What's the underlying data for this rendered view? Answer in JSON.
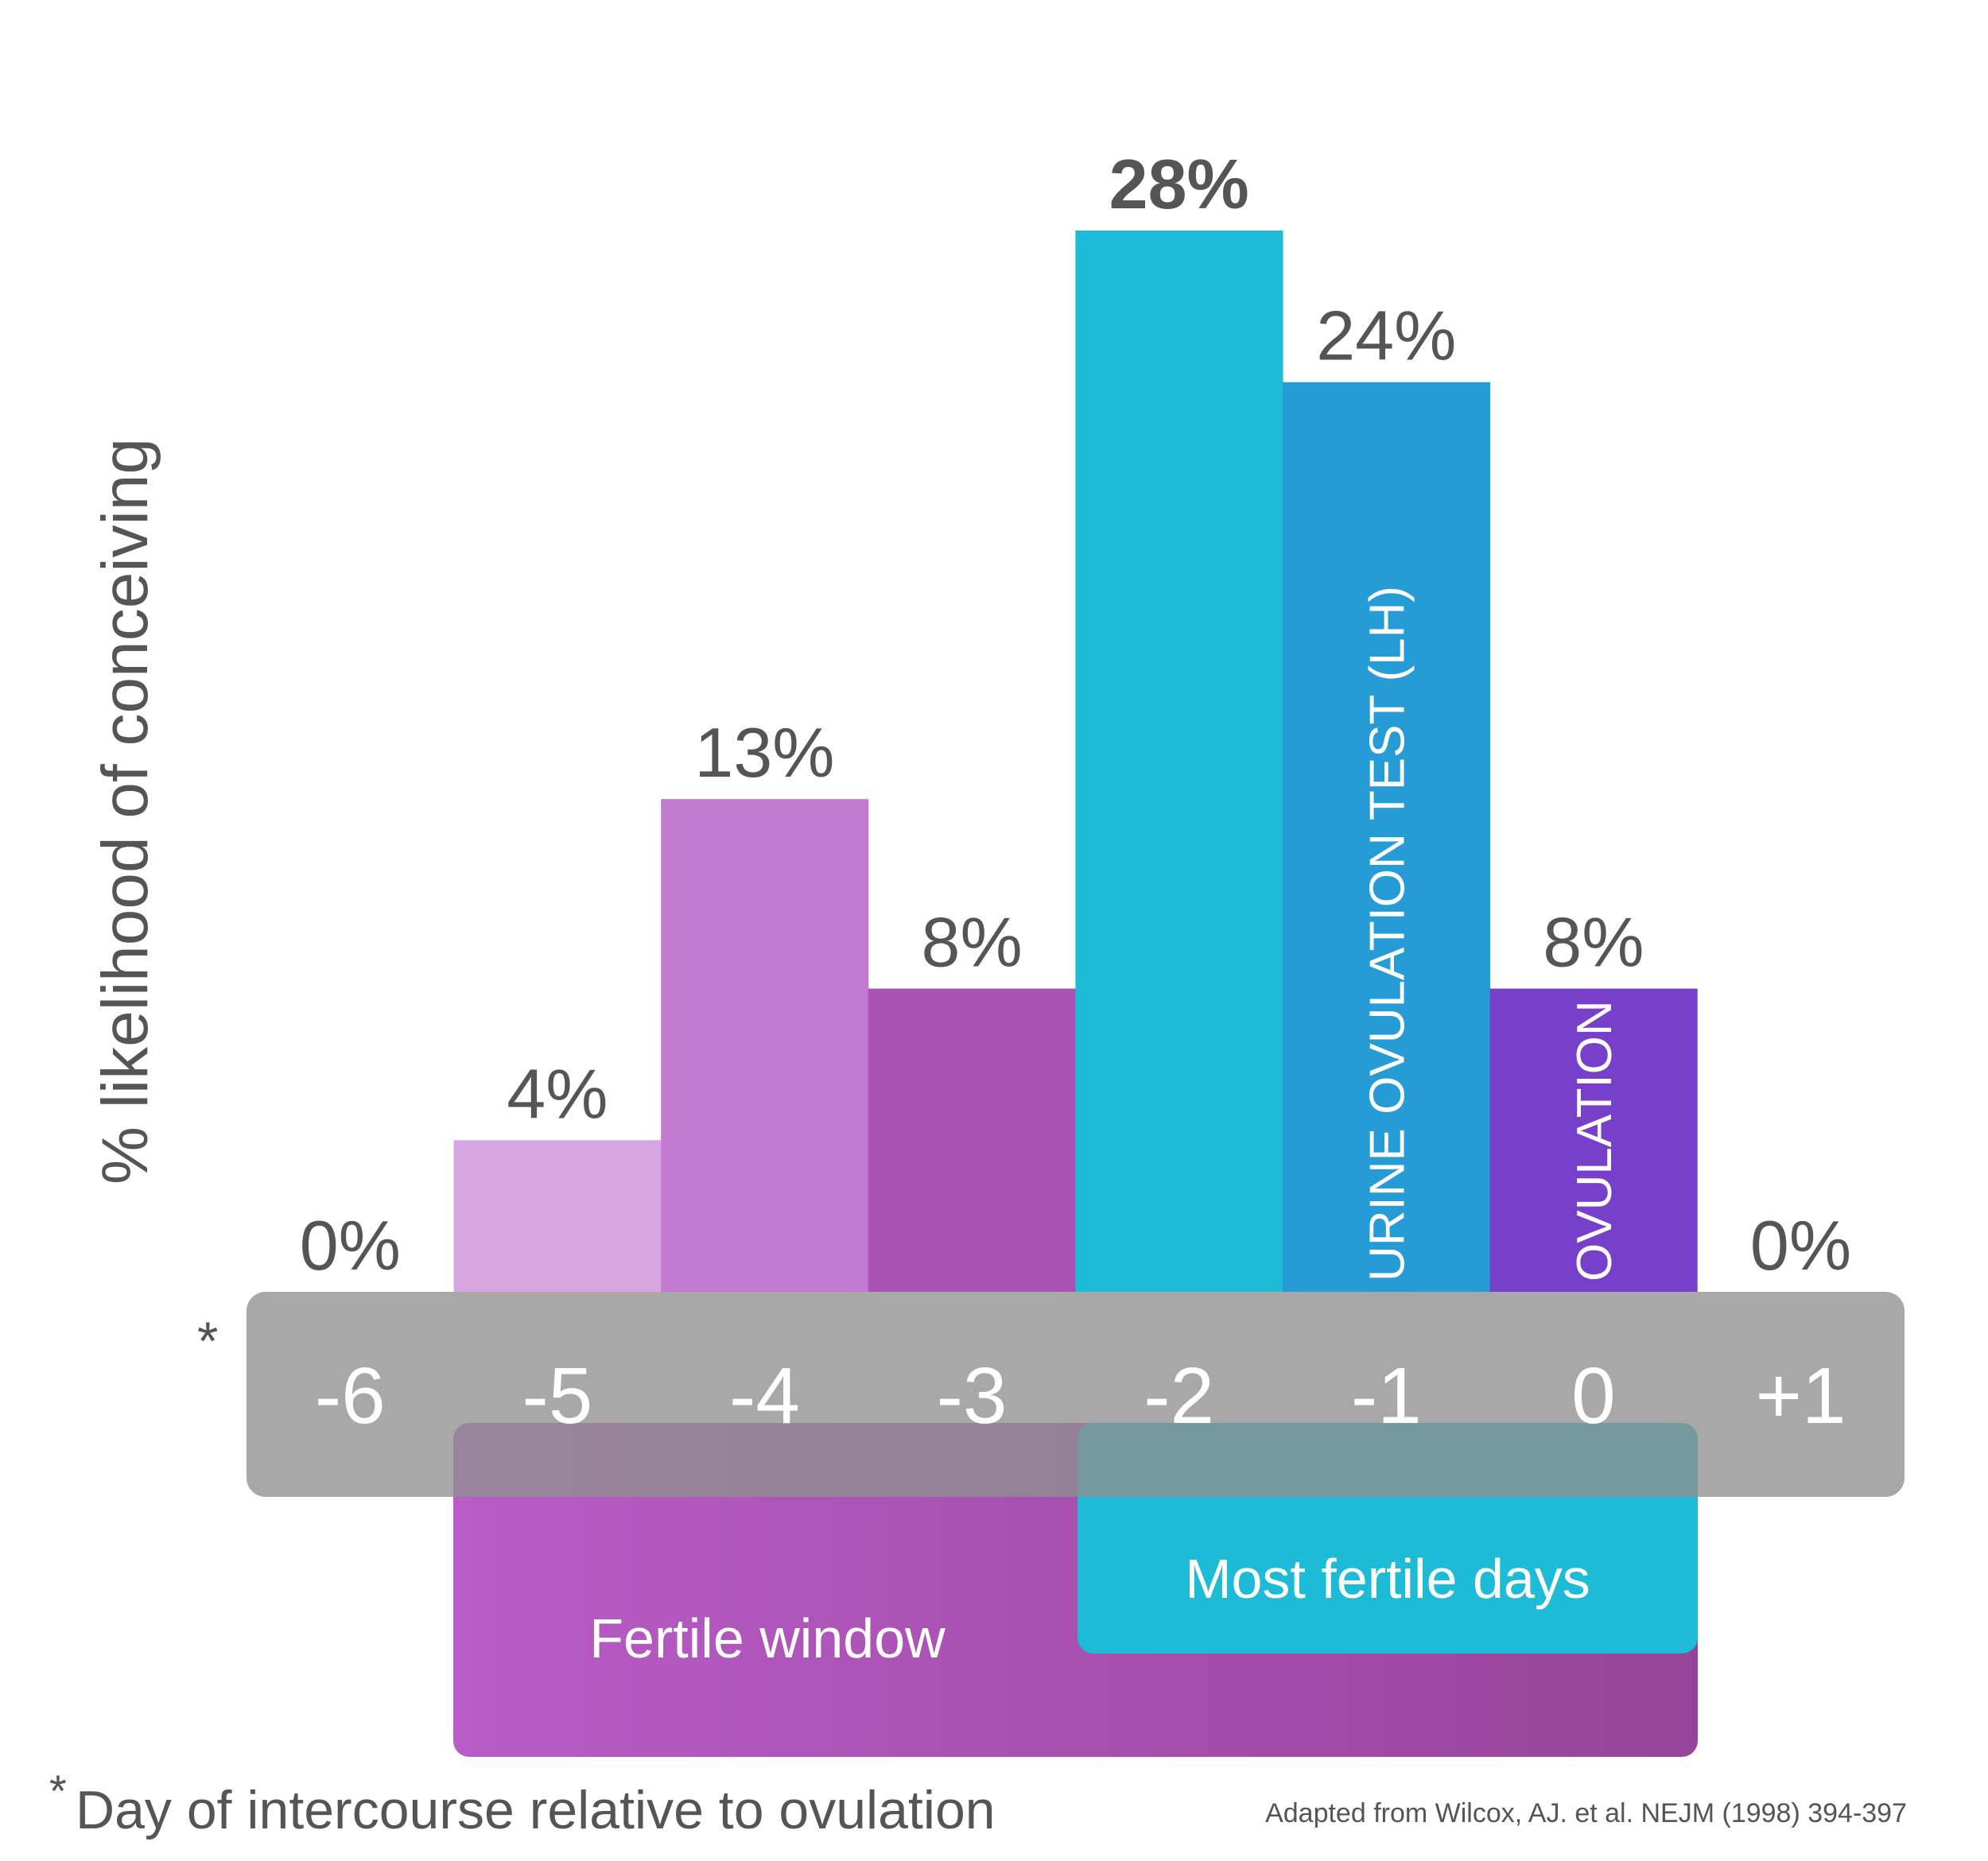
{
  "chart_data": {
    "type": "bar",
    "title": "",
    "ylabel": "% likelihood of conceiving",
    "xlabel": "Day of intercourse relative to ovulation",
    "xlabel_marker": "*",
    "axis_marker": "*",
    "categories": [
      "-6",
      "-5",
      "-4",
      "-3",
      "-2",
      "-1",
      "0",
      "+1"
    ],
    "values": [
      0,
      4,
      13,
      8,
      28,
      24,
      8,
      0
    ],
    "value_labels": [
      "0%",
      "4%",
      "13%",
      "8%",
      "28%",
      "24%",
      "8%",
      "0%"
    ],
    "bold_label_index": 4,
    "ylim": [
      0,
      30
    ],
    "grid": false,
    "bar_colors": [
      "#d5a6e0",
      "#d5a6e0",
      "#c27ad1",
      "#a853b3",
      "#1ebbd6",
      "#259cd6",
      "#783fca",
      "#9e9e9e"
    ],
    "bar_annotations": [
      {
        "category": "-1",
        "text": "URINE OVULATION TEST (LH)"
      },
      {
        "category": "0",
        "text": "OVULATION"
      }
    ],
    "bands": [
      {
        "label": "Fertile window",
        "from": "-5",
        "to": "0",
        "color": "#b25cc4"
      },
      {
        "label": "Most fertile days",
        "from": "-2",
        "to": "0",
        "color": "#1ebbd6"
      }
    ],
    "source": "Adapted from Wilcox, AJ. et al. NEJM (1998) 394-397"
  },
  "colors": {
    "axis_band": "#8f8f8f",
    "text_gray": "#555555"
  }
}
